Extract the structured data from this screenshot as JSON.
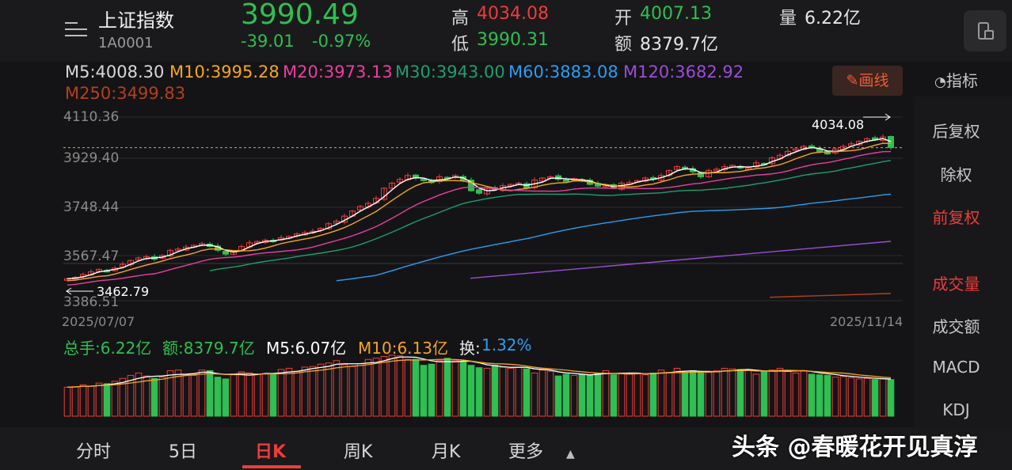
{
  "header": {
    "title": "上证指数",
    "code": "1A0001",
    "price": "3990.49",
    "change": "-39.01",
    "change_pct": "-0.97%",
    "high_label": "高",
    "high": "4034.08",
    "low_label": "低",
    "low": "3990.31",
    "open_label": "开",
    "open": "4007.13",
    "amount_label": "额",
    "amount": "8379.7亿",
    "volume_label": "量",
    "volume": "6.22亿"
  },
  "ma_legend": [
    {
      "label": "M5:4008.30",
      "color": "#ffffff"
    },
    {
      "label": "M10:3995.28",
      "color": "#f5a623"
    },
    {
      "label": "M20:3973.13",
      "color": "#e83fa0"
    },
    {
      "label": "M30:3943.00",
      "color": "#1f9e6e"
    },
    {
      "label": "M60:3883.08",
      "color": "#2d9cf0"
    },
    {
      "label": "M120:3682.92",
      "color": "#9b4dd6"
    },
    {
      "label": "M250:3499.83",
      "color": "#b3401e"
    }
  ],
  "toolbar": {
    "draw_label": "画线",
    "indicator_label": "指标"
  },
  "right_panel": {
    "items": [
      "后复权",
      "除权",
      "前复权",
      "成交量",
      "成交额",
      "MACD",
      "KDJ"
    ]
  },
  "chart": {
    "y_ticks": [
      "4110.36",
      "3929.40",
      "3748.44",
      "3567.47",
      "3386.51"
    ],
    "start_date": "2025/07/07",
    "end_date": "2025/11/14",
    "max_marker": "4034.08",
    "min_marker": "3462.79"
  },
  "volume_legend": {
    "total": "总手:6.22亿",
    "amount": "额:8379.7亿",
    "m5": "M5:6.07亿",
    "m10": "M10:6.13亿",
    "turnover_label": "换:",
    "turnover": "1.32%"
  },
  "tabs": [
    "分时",
    "5日",
    "日K",
    "周K",
    "月K",
    "更多"
  ],
  "watermark": "头条 @春暖花开见真淳",
  "chart_data": {
    "type": "candlestick",
    "x_start": "2025/07/07",
    "x_end": "2025/11/14",
    "ylim": [
      3386.51,
      4110.36
    ],
    "y_ticks": [
      4110.36,
      3929.4,
      3748.44,
      3567.47,
      3386.51
    ],
    "close": [
      3473,
      3478,
      3490,
      3500,
      3510,
      3505,
      3515,
      3530,
      3545,
      3555,
      3560,
      3550,
      3565,
      3585,
      3590,
      3598,
      3605,
      3612,
      3600,
      3585,
      3570,
      3580,
      3600,
      3615,
      3620,
      3625,
      3622,
      3635,
      3640,
      3650,
      3655,
      3660,
      3672,
      3690,
      3700,
      3720,
      3740,
      3758,
      3770,
      3790,
      3830,
      3850,
      3865,
      3880,
      3870,
      3860,
      3852,
      3875,
      3870,
      3880,
      3862,
      3820,
      3810,
      3830,
      3825,
      3840,
      3845,
      3850,
      3830,
      3862,
      3870,
      3875,
      3865,
      3860,
      3868,
      3862,
      3845,
      3838,
      3842,
      3830,
      3850,
      3852,
      3860,
      3870,
      3865,
      3880,
      3900,
      3915,
      3905,
      3895,
      3875,
      3900,
      3905,
      3915,
      3920,
      3910,
      3910,
      3930,
      3925,
      3950,
      3960,
      3975,
      3985,
      3995,
      3990,
      3975,
      3965,
      3985,
      3995,
      4005,
      4015,
      4025,
      4020,
      4032,
      3990
    ],
    "ma_series": [
      {
        "name": "M5",
        "value": 4008.3
      },
      {
        "name": "M10",
        "value": 3995.28
      },
      {
        "name": "M20",
        "value": 3973.13
      },
      {
        "name": "M30",
        "value": 3943.0
      },
      {
        "name": "M60",
        "value": 3883.08
      },
      {
        "name": "M120",
        "value": 3682.92
      },
      {
        "name": "M250",
        "value": 3499.83
      }
    ],
    "volume": [
      4.9,
      5.0,
      5.3,
      5.1,
      5.6,
      5.5,
      5.9,
      6.4,
      6.9,
      7.3,
      6.8,
      6.4,
      6.6,
      7.7,
      7.8,
      7.0,
      6.9,
      7.8,
      7.7,
      6.6,
      6.3,
      7.0,
      7.5,
      7.3,
      7.1,
      7.2,
      7.1,
      7.9,
      8.1,
      7.6,
      8.3,
      8.4,
      8.8,
      9.0,
      9.4,
      8.7,
      8.4,
      8.9,
      9.6,
      9.8,
      10.1,
      10.3,
      10.2,
      9.6,
      9.6,
      8.6,
      8.8,
      9.4,
      9.8,
      9.4,
      9.2,
      8.6,
      8.2,
      8.1,
      8.6,
      8.3,
      8.1,
      8.3,
      8.0,
      7.3,
      7.8,
      7.6,
      6.8,
      7.1,
      6.9,
      7.1,
      7.0,
      7.3,
      7.7,
      7.0,
      7.3,
      7.1,
      7.3,
      7.0,
      7.3,
      7.8,
      7.4,
      8.1,
      7.4,
      7.7,
      7.3,
      7.4,
      7.7,
      8.1,
      8.0,
      7.9,
      7.8,
      7.1,
      7.5,
      7.8,
      8.1,
      7.6,
      7.3,
      7.7,
      7.1,
      7.0,
      6.9,
      6.6,
      6.7,
      6.5,
      6.3,
      6.4,
      6.2,
      6.3,
      6.2
    ]
  }
}
